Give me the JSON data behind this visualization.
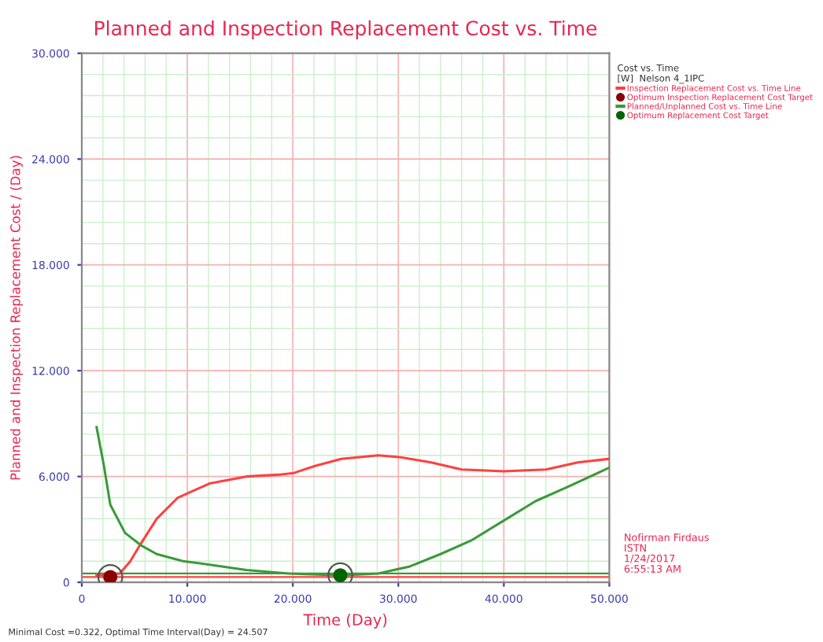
{
  "chart_data": {
    "type": "line",
    "title": "Planned and Inspection Replacement Cost vs. Time",
    "xlabel": "Time (Day)",
    "ylabel": "Planned and Inspection Replacement Cost / (Day)",
    "legend_title": "Cost vs. Time",
    "xlim": [
      0,
      50
    ],
    "ylim": [
      0,
      30
    ],
    "xticks": [
      0,
      {
        "value": 10,
        "label": "10.000"
      },
      {
        "value": 20,
        "label": "20.000"
      },
      {
        "value": 30,
        "label": "30.000"
      },
      {
        "value": 40,
        "label": "40.000"
      },
      {
        "value": 50,
        "label": "50.000"
      }
    ],
    "yticks": [
      0,
      {
        "value": 6,
        "label": "6.000"
      },
      {
        "value": 12,
        "label": "12.000"
      },
      {
        "value": 18,
        "label": "18.000"
      },
      {
        "value": 24,
        "label": "24.000"
      },
      {
        "value": 30,
        "label": "30.000"
      }
    ],
    "grid": true,
    "legend": "top right",
    "line_style": "solid",
    "series": [
      {
        "name": "Inspection Replacement Cost vs. Time Line",
        "color": "#ff4040",
        "x": [
          1.4,
          3.6,
          4.6,
          5.6,
          7.1,
          9.1,
          12.1,
          15.6,
          18.6,
          20.1,
          22.1,
          24.6,
          28.1,
          30.1,
          33.1,
          36.0,
          40.0,
          44.0,
          47.0,
          50.0
        ],
        "values": [
          0.4,
          0.5,
          1.2,
          2.2,
          3.6,
          4.8,
          5.6,
          6.0,
          6.1,
          6.2,
          6.6,
          7.0,
          7.2,
          7.1,
          6.8,
          6.4,
          6.3,
          6.4,
          6.8,
          7.0
        ]
      },
      {
        "name": "Optimum Inspection Replacement Cost Target",
        "type": "scatter",
        "marker": "circle",
        "color": "#8b0000",
        "x": [
          2.7
        ],
        "values": [
          0.3
        ]
      },
      {
        "name": "Planned/Unplanned Cost vs. Time Line",
        "color": "#3a9a3a",
        "x": [
          1.4,
          2.1,
          2.7,
          4.1,
          5.6,
          7.1,
          9.6,
          12.1,
          15.6,
          19.6,
          24.6,
          28.1,
          31.1,
          34.0,
          37.0,
          40.0,
          43.0,
          46.0,
          50.0
        ],
        "values": [
          8.8,
          6.6,
          4.4,
          2.8,
          2.1,
          1.6,
          1.2,
          1.0,
          0.7,
          0.5,
          0.4,
          0.5,
          0.9,
          1.6,
          2.4,
          3.5,
          4.6,
          5.4,
          6.5
        ]
      },
      {
        "name": "Optimum Replacement Cost Target",
        "type": "scatter",
        "marker": "circle",
        "color": "#006400",
        "x": [
          24.5
        ],
        "values": [
          0.4
        ]
      }
    ],
    "ref_lines": [
      {
        "axis": "y",
        "value": 0.3,
        "label": null,
        "color": "#ff4040"
      },
      {
        "axis": "y",
        "value": 0.5,
        "label": null,
        "color": "#3a9a3a"
      }
    ],
    "annotations": [
      "[W]  Nelson 4_1IPC",
      "Nofirman Firdaus\nISTN\n1/24/2017\n6:55:13 AM",
      "Minimal Cost =0.322, Optimal Time Interval(Day) = 24.507"
    ]
  }
}
